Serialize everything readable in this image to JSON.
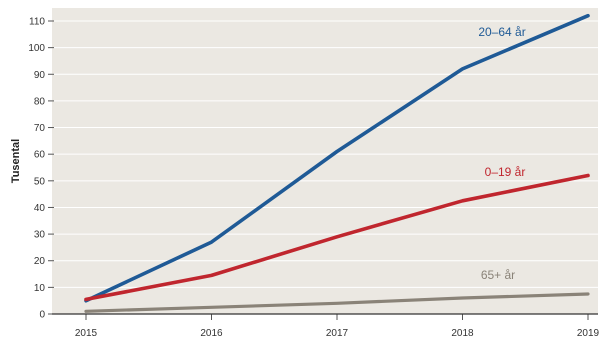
{
  "chart_data": {
    "type": "line",
    "x": [
      "2015",
      "2016",
      "2017",
      "2018",
      "2019"
    ],
    "ylabel": "Tusental",
    "xlabel": "",
    "ylim": [
      0,
      110
    ],
    "yticks": [
      0,
      10,
      20,
      30,
      40,
      50,
      60,
      70,
      80,
      90,
      100,
      110
    ],
    "grid": true,
    "background": "#ebe8e2",
    "gridColor": "#ffffff",
    "series": [
      {
        "name": "20–64 år",
        "values": [
          5,
          27,
          61,
          92,
          112
        ],
        "color": "#1f5a96"
      },
      {
        "name": "0–19 år",
        "values": [
          5.5,
          14.5,
          29,
          42.5,
          52
        ],
        "color": "#c0262e"
      },
      {
        "name": "65+ år",
        "values": [
          1,
          2.5,
          4,
          6,
          7.5
        ],
        "color": "#8a8378"
      }
    ]
  }
}
